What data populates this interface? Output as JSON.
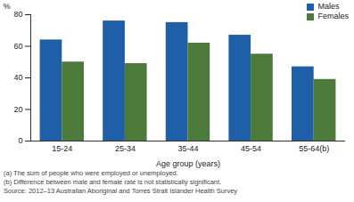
{
  "chart_data": {
    "type": "bar",
    "categories": [
      "15-24",
      "25-34",
      "35-44",
      "45-54",
      "55-64(b)"
    ],
    "series": [
      {
        "name": "Males",
        "color": "#1f5fa8",
        "values": [
          64,
          76,
          75,
          67,
          47
        ]
      },
      {
        "name": "Females",
        "color": "#4c7a3a",
        "values": [
          50,
          49,
          62,
          55,
          39
        ]
      }
    ],
    "x_label": "Age group (years)",
    "y_label": "%",
    "ylim": [
      0,
      80
    ],
    "yticks": [
      0,
      20,
      40,
      60,
      80
    ],
    "grid": false,
    "legend": "upper right",
    "annotations": [
      "(a) The sum of people who were employed or unemployed.",
      "(b) Difference between male and female rate is not statistically significant.",
      "Source: 2012–13 Australian Aboriginal and Torres Strait Islander Health Survey"
    ]
  }
}
